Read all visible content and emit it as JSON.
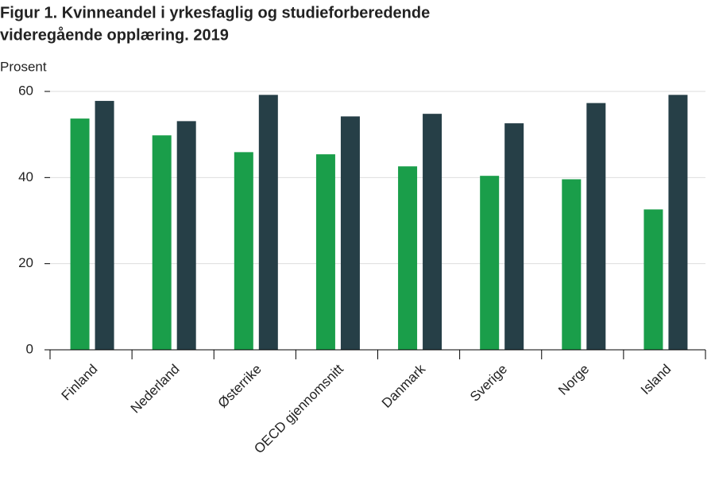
{
  "chart_data": {
    "type": "bar",
    "title": [
      "Figur 1. Kvinneandel i yrkesfaglig og studieforberedende",
      "videregående opplæring. 2019"
    ],
    "y_label": "Prosent",
    "categories": [
      "Finland",
      "Nederland",
      "Østerrike",
      "OECD  gjennomsnitt",
      "Danmark",
      "Sverige",
      "Norge",
      "Island"
    ],
    "series": [
      {
        "color": "#1a9e4a",
        "values": [
          53.7,
          49.8,
          45.9,
          45.4,
          42.6,
          40.4,
          39.6,
          32.6
        ]
      },
      {
        "color": "#263f47",
        "values": [
          57.8,
          53.1,
          59.2,
          54.2,
          54.8,
          52.6,
          57.3,
          59.2
        ]
      }
    ],
    "ylim": [
      0,
      60
    ],
    "yticks": [
      0,
      20,
      40,
      60
    ],
    "grid": true
  }
}
